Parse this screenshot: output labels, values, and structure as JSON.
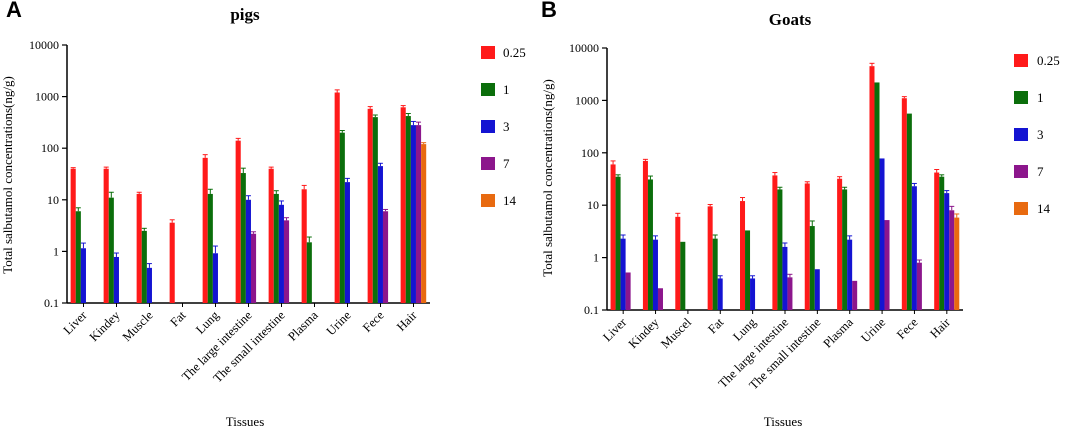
{
  "chart_data": [
    {
      "type": "bar",
      "panel": "A",
      "title": "pigs",
      "xlabel": "Tissues",
      "ylabel": "Total salbutamol concentrations(ng/g)",
      "yscale": "log",
      "ylim": [
        0.1,
        10000
      ],
      "yticks": [
        "0.1",
        "1",
        "10",
        "100",
        "1000",
        "10000"
      ],
      "categories": [
        "Liver",
        "Kindey",
        "Muscle",
        "Fat",
        "Lung",
        "The large intestine",
        "The small intestine",
        "Plasma",
        "Urine",
        "Fece",
        "Hair"
      ],
      "series": [
        {
          "name": "0.25",
          "color": "#ff1a1a",
          "values": [
            40,
            40,
            13,
            3.6,
            65,
            140,
            40,
            16,
            1200,
            580,
            620
          ],
          "errors": [
            2,
            3,
            1,
            0.5,
            10,
            15,
            3,
            3,
            150,
            60,
            50
          ]
        },
        {
          "name": "1",
          "color": "#0b6e0b",
          "values": [
            6,
            11,
            2.5,
            null,
            13,
            33,
            13,
            1.5,
            200,
            400,
            420
          ],
          "errors": [
            1,
            3,
            0.3,
            null,
            3,
            8,
            2,
            0.4,
            20,
            40,
            50
          ]
        },
        {
          "name": "3",
          "color": "#1414d2",
          "values": [
            1.15,
            0.78,
            0.48,
            null,
            0.92,
            10,
            8,
            null,
            22,
            45,
            280
          ],
          "errors": [
            0.3,
            0.15,
            0.1,
            null,
            0.35,
            2,
            1.5,
            null,
            4,
            6,
            50
          ]
        },
        {
          "name": "7",
          "color": "#8c168c",
          "values": [
            null,
            null,
            null,
            null,
            null,
            2.2,
            4,
            null,
            null,
            6,
            280
          ],
          "errors": [
            null,
            null,
            null,
            null,
            null,
            0.2,
            0.5,
            null,
            null,
            0.5,
            40
          ]
        },
        {
          "name": "14",
          "color": "#e86a10",
          "values": [
            null,
            null,
            null,
            null,
            null,
            null,
            null,
            null,
            null,
            null,
            120
          ],
          "errors": [
            null,
            null,
            null,
            null,
            null,
            null,
            null,
            null,
            null,
            null,
            8
          ]
        }
      ],
      "legend": [
        "0.25",
        "1",
        "3",
        "7",
        "14"
      ]
    },
    {
      "type": "bar",
      "panel": "B",
      "title": "Goats",
      "xlabel": "Tissues",
      "ylabel": "Total salbutamol concentrations(ng/g)",
      "yscale": "log",
      "ylim": [
        0.1,
        10000
      ],
      "yticks": [
        "0.1",
        "1",
        "10",
        "100",
        "1000",
        "10000"
      ],
      "categories": [
        "Liver",
        "Kindey",
        "Muscel",
        "Fat",
        "Lung",
        "The large intestine",
        "The small intestine",
        "Plasma",
        "Urine",
        "Fece",
        "Hair"
      ],
      "series": [
        {
          "name": "0.25",
          "color": "#ff1a1a",
          "values": [
            60,
            70,
            6,
            9.5,
            12,
            37,
            26,
            32,
            4500,
            1100,
            42
          ],
          "errors": [
            10,
            5,
            1,
            0.8,
            2,
            5,
            2,
            3,
            600,
            80,
            6
          ]
        },
        {
          "name": "1",
          "color": "#0b6e0b",
          "values": [
            35,
            31,
            2,
            2.3,
            3.3,
            20,
            4,
            20,
            2200,
            560,
            35
          ],
          "errors": [
            3,
            5,
            null,
            0.4,
            null,
            2,
            1,
            2,
            null,
            null,
            3
          ]
        },
        {
          "name": "3",
          "color": "#1414d2",
          "values": [
            2.3,
            2.2,
            null,
            0.4,
            0.4,
            1.6,
            0.6,
            2.2,
            78,
            23,
            17
          ],
          "errors": [
            0.4,
            0.4,
            null,
            0.05,
            0.05,
            0.3,
            null,
            0.4,
            null,
            3,
            2
          ]
        },
        {
          "name": "7",
          "color": "#8c168c",
          "values": [
            0.52,
            0.26,
            null,
            null,
            null,
            0.42,
            null,
            0.36,
            5.2,
            0.8,
            8
          ],
          "errors": [
            null,
            null,
            null,
            null,
            null,
            0.06,
            null,
            null,
            null,
            0.1,
            1.5
          ]
        },
        {
          "name": "14",
          "color": "#e86a10",
          "values": [
            null,
            null,
            null,
            null,
            null,
            null,
            null,
            null,
            null,
            null,
            5.8
          ],
          "errors": [
            null,
            null,
            null,
            null,
            null,
            null,
            null,
            null,
            null,
            null,
            1
          ]
        }
      ],
      "legend": [
        "0.25",
        "1",
        "3",
        "7",
        "14"
      ]
    }
  ]
}
